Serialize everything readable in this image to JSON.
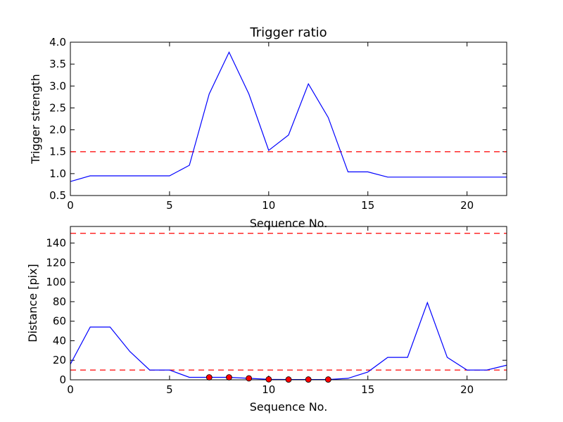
{
  "chart_data": [
    {
      "type": "line",
      "title": "Trigger ratio",
      "xlabel": "Sequence No.",
      "ylabel": "Trigger strength",
      "xlim": [
        0,
        22
      ],
      "ylim": [
        0.5,
        4.0
      ],
      "xticks": [
        0,
        5,
        10,
        15,
        20
      ],
      "yticks": [
        0.5,
        1.0,
        1.5,
        2.0,
        2.5,
        3.0,
        3.5,
        4.0
      ],
      "ytick_labels": [
        "0.5",
        "1.0",
        "1.5",
        "2.0",
        "2.5",
        "3.0",
        "3.5",
        "4.0"
      ],
      "grid": false,
      "colors": {
        "line": "#0000ff",
        "threshold": "#ff0000"
      },
      "series": [
        {
          "x": [
            0,
            1,
            2,
            3,
            4,
            5,
            6,
            7,
            8,
            9,
            10,
            11,
            12,
            13,
            14,
            15,
            16,
            17,
            18,
            19,
            20,
            21,
            22
          ],
          "values": [
            0.82,
            0.95,
            0.95,
            0.95,
            0.95,
            0.95,
            1.19,
            2.82,
            3.77,
            2.82,
            1.53,
            1.88,
            3.05,
            2.28,
            1.04,
            1.04,
            0.92,
            0.92,
            0.92,
            0.92,
            0.92,
            0.92,
            0.92
          ]
        }
      ],
      "hlines": [
        1.5
      ]
    },
    {
      "type": "line",
      "title": "",
      "xlabel": "Sequence No.",
      "ylabel": "Distance [pix]",
      "xlim": [
        0,
        22
      ],
      "ylim": [
        0,
        157
      ],
      "xticks": [
        0,
        5,
        10,
        15,
        20
      ],
      "yticks": [
        0,
        20,
        40,
        60,
        80,
        100,
        120,
        140
      ],
      "ytick_labels": [
        "0",
        "20",
        "40",
        "60",
        "80",
        "100",
        "120",
        "140"
      ],
      "grid": false,
      "colors": {
        "line": "#0000ff",
        "threshold": "#ff0000",
        "marker": "#ff0000"
      },
      "series": [
        {
          "x": [
            0,
            1,
            2,
            3,
            4,
            5,
            6,
            7,
            8,
            9,
            10,
            11,
            12,
            13,
            14,
            15,
            16,
            17,
            18,
            19,
            20,
            21,
            22
          ],
          "values": [
            16,
            54,
            54,
            29,
            10,
            10,
            2.5,
            2.5,
            2.5,
            1.5,
            0.5,
            0.3,
            0.3,
            0.3,
            1.5,
            8,
            23,
            23,
            79,
            23,
            10,
            10,
            15
          ]
        }
      ],
      "markers": {
        "x": [
          7,
          8,
          9,
          10,
          11,
          12,
          13
        ],
        "values": [
          2.5,
          2.5,
          1.5,
          0.5,
          0.3,
          0.3,
          0.3
        ]
      },
      "hlines": [
        10,
        150
      ]
    }
  ]
}
